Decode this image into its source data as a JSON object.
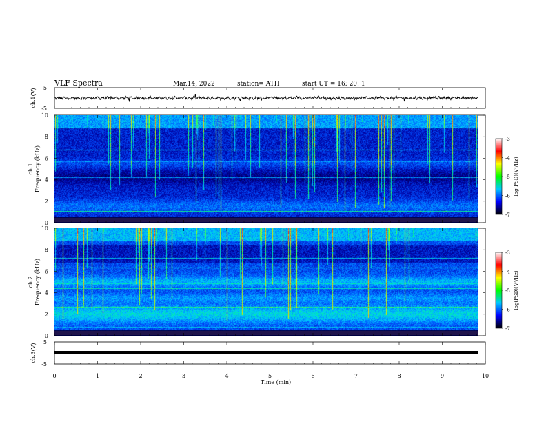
{
  "header": {
    "title": "VLF Spectra",
    "date": "Mar.14, 2022",
    "station": "station= ATH",
    "start": "start UT =  16: 20: 1"
  },
  "colors": {
    "spectrogram": [
      "#000030",
      "#0000a0",
      "#0050ff",
      "#00c8ff",
      "#00ff80",
      "#c8ff00",
      "#ffc800",
      "#ff2000",
      "#ffffff"
    ]
  },
  "chart_data": [
    {
      "type": "line",
      "id": "ch1-waveform",
      "ylabel": "ch.1(V)",
      "ylim": [
        -5,
        5
      ],
      "yticks": [
        "5",
        "-5"
      ]
    },
    {
      "type": "heatmap",
      "id": "ch1-spectrogram",
      "ylabel_channel": "ch.1",
      "ylabel": "Frequency (kHz)",
      "ylim": [
        0,
        10
      ],
      "yticks": [
        "10",
        "8",
        "6",
        "4",
        "2",
        "0"
      ],
      "colorbar": {
        "label": "log(PSD)(V²/Hz)",
        "range": [
          -7,
          -3
        ],
        "ticks": [
          "-3",
          "-4",
          "-5",
          "-6",
          "-7"
        ]
      }
    },
    {
      "type": "heatmap",
      "id": "ch2-spectrogram",
      "ylabel_channel": "ch.2",
      "ylabel": "Frequency (kHz)",
      "ylim": [
        0,
        10
      ],
      "yticks": [
        "10",
        "8",
        "6",
        "4",
        "2",
        "0"
      ],
      "colorbar": {
        "label": "log(PSD)(V²/Hz)",
        "range": [
          -7,
          -3
        ],
        "ticks": [
          "-3",
          "-4",
          "-5",
          "-6",
          "-7"
        ]
      }
    },
    {
      "type": "line",
      "id": "ch3-waveform",
      "ylabel": "ch.3(V)",
      "ylim": [
        -5,
        5
      ],
      "yticks": [
        "5",
        "-5"
      ]
    }
  ],
  "xaxis": {
    "label": "Time (min)",
    "range": [
      0,
      10
    ],
    "ticks": [
      "0",
      "1",
      "2",
      "3",
      "4",
      "5",
      "6",
      "7",
      "8",
      "9",
      "10"
    ]
  }
}
